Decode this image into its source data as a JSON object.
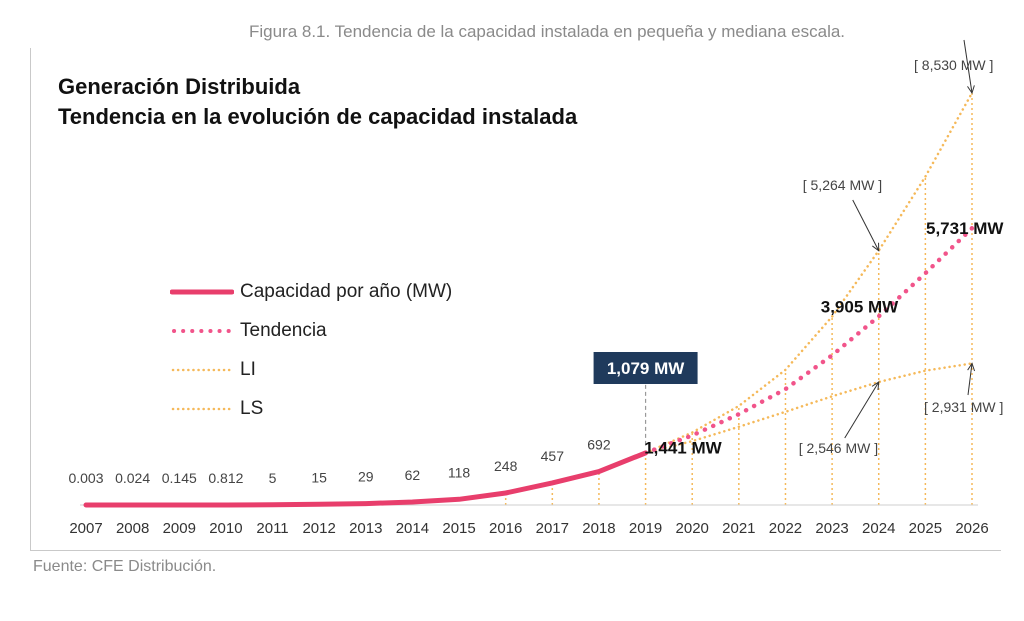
{
  "caption": "Figura 8.1. Tendencia de la capacidad instalada en pequeña y mediana escala.",
  "source": "Fuente: CFE Distribución.",
  "chart_data": {
    "type": "line",
    "title": "Generación Distribuida",
    "subtitle": "Tendencia en la evolución de capacidad instalada",
    "x": [
      "2007",
      "2008",
      "2009",
      "2010",
      "2011",
      "2012",
      "2013",
      "2014",
      "2015",
      "2016",
      "2017",
      "2018",
      "2019",
      "2020",
      "2021",
      "2022",
      "2023",
      "2024",
      "2025",
      "2026"
    ],
    "ylim": [
      0,
      8530
    ],
    "legend_position": "left-center",
    "colors": {
      "actual": "#e83e6c",
      "trend": "#f1548a",
      "bounds": "#f5b95a"
    },
    "series": [
      {
        "name": "Capacidad por año (MW)",
        "style": "solid",
        "x": [
          "2007",
          "2008",
          "2009",
          "2010",
          "2011",
          "2012",
          "2013",
          "2014",
          "2015",
          "2016",
          "2017",
          "2018",
          "2019"
        ],
        "values": [
          0.003,
          0.024,
          0.145,
          0.812,
          5,
          15,
          29,
          62,
          118,
          248,
          457,
          692,
          1079
        ]
      },
      {
        "name": "Tendencia",
        "style": "dotted",
        "x": [
          "2019",
          "2020",
          "2021",
          "2022",
          "2023",
          "2024",
          "2025",
          "2026"
        ],
        "values": [
          1079,
          1441,
          1880,
          2400,
          3100,
          3905,
          4800,
          5731
        ]
      },
      {
        "name": "LI",
        "style": "dotted",
        "x": [
          "2019",
          "2020",
          "2021",
          "2022",
          "2023",
          "2024",
          "2025",
          "2026"
        ],
        "values": [
          1079,
          1500,
          2050,
          2800,
          3900,
          5264,
          6800,
          8530
        ]
      },
      {
        "name": "LS",
        "style": "dotted",
        "x": [
          "2019",
          "2020",
          "2021",
          "2022",
          "2023",
          "2024",
          "2025",
          "2026"
        ],
        "values": [
          1079,
          1320,
          1620,
          1930,
          2250,
          2546,
          2780,
          2931
        ]
      }
    ],
    "data_labels": [
      "0.003",
      "0.024",
      "0.145",
      "0.812",
      "5",
      "15",
      "29",
      "62",
      "118",
      "248",
      "457",
      "692"
    ],
    "annotations": [
      {
        "text": "1,079 MW",
        "x": "2019",
        "value": 1079,
        "boxed": true
      },
      {
        "text": "1,441 MW",
        "x": "2020",
        "value": 1441
      },
      {
        "text": "3,905 MW",
        "x": "2024",
        "value": 3905
      },
      {
        "text": "5,731 MW",
        "x": "2026",
        "value": 5731
      }
    ],
    "bracket_labels": [
      {
        "text": "[ 8,530 MW ]",
        "x": "2026",
        "value": 8530,
        "series": "LI"
      },
      {
        "text": "[ 5,264 MW ]",
        "x": "2024",
        "value": 5264,
        "series": "LI"
      },
      {
        "text": "[ 2,546 MW ]",
        "x": "2024",
        "value": 2546,
        "series": "LS"
      },
      {
        "text": "[ 2,931 MW ]",
        "x": "2026",
        "value": 2931,
        "series": "LS"
      }
    ]
  }
}
